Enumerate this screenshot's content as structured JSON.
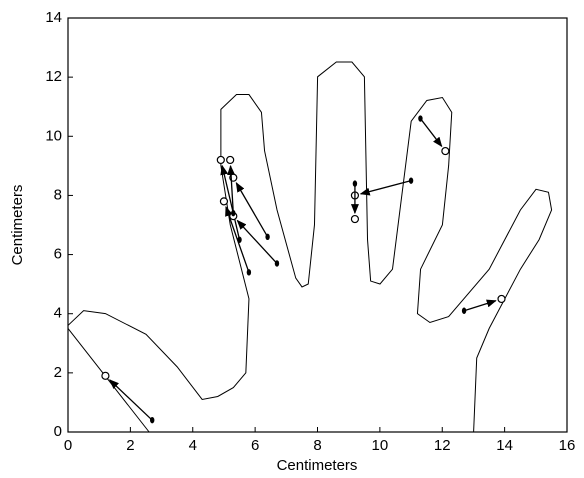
{
  "chart_data": {
    "type": "vector",
    "x_label": "Centimeters",
    "y_label": "Centimeters",
    "x": [
      2.7,
      11.0,
      9.2,
      11.3,
      12.7,
      5.8,
      5.5,
      6.7,
      6.4,
      5.3
    ],
    "y": [
      0.4,
      8.5,
      8.4,
      10.6,
      4.1,
      5.4,
      6.5,
      5.7,
      6.6,
      7.4
    ],
    "x2": [
      1.2,
      9.2,
      9.2,
      12.1,
      13.9,
      5.0,
      4.9,
      5.3,
      5.3,
      5.2
    ],
    "y2": [
      1.9,
      8.0,
      7.2,
      9.5,
      4.5,
      7.8,
      9.2,
      7.3,
      8.6,
      9.2
    ],
    "color": "#000000",
    "xlim": [
      0,
      16
    ],
    "ylim": [
      0,
      14
    ],
    "xticks": [
      0,
      2,
      4,
      6,
      8,
      10,
      12,
      14,
      16
    ],
    "yticks": [
      0,
      2,
      4,
      6,
      8,
      10,
      12,
      14
    ]
  }
}
